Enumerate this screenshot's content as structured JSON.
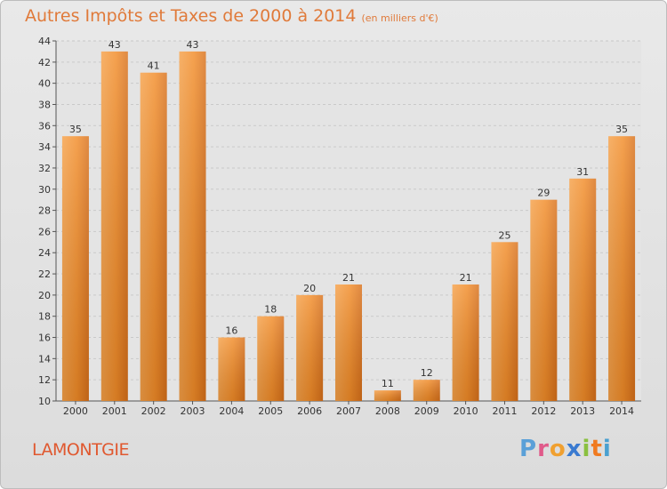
{
  "title": "Autres Impôts et Taxes de 2000 à 2014",
  "subtitle": "(en milliers d'€)",
  "place": "LAMONTGIE",
  "logo": {
    "text": "Proxiti",
    "colors": [
      "#5aa0d8",
      "#e05a8a",
      "#f0a030",
      "#3a7ad0",
      "#8ac040",
      "#f07a20",
      "#4aa0d0"
    ]
  },
  "colors": {
    "bar": "#f28c28",
    "bar_light": "#f7a650",
    "bar_dark": "#d8701a",
    "title": "#e07a3a",
    "place": "#e0582f"
  },
  "chart_data": {
    "type": "bar",
    "categories": [
      "2000",
      "2001",
      "2002",
      "2003",
      "2004",
      "2005",
      "2006",
      "2007",
      "2008",
      "2009",
      "2010",
      "2011",
      "2012",
      "2013",
      "2014"
    ],
    "values": [
      35,
      43,
      41,
      43,
      16,
      18,
      20,
      21,
      11,
      12,
      21,
      25,
      29,
      31,
      35
    ],
    "ylim": [
      10,
      44
    ],
    "yticks": [
      10,
      12,
      14,
      16,
      18,
      20,
      22,
      24,
      26,
      28,
      30,
      32,
      34,
      36,
      38,
      40,
      42,
      44
    ],
    "grid": true,
    "legend": "none"
  }
}
